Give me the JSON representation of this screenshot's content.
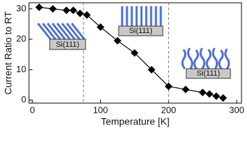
{
  "chart_data": {
    "type": "line",
    "x_label": "Temperature [K]",
    "y_label": "Current Ratio to RT",
    "x": [
      10,
      30,
      50,
      60,
      70,
      80,
      100,
      125,
      150,
      175,
      200,
      225,
      250,
      260,
      270,
      280
    ],
    "series": [
      {
        "color": "#000000",
        "values": [
          30.5,
          30,
          29.5,
          29.5,
          28.5,
          28,
          24,
          19.5,
          15.5,
          10,
          4.5,
          3.5,
          2.5,
          2,
          1.3,
          0.7
        ]
      }
    ],
    "xlim": [
      -5,
      307
    ],
    "ylim": [
      -1,
      32
    ],
    "xticks": [
      0,
      100,
      200,
      300
    ],
    "yticks": [
      0,
      10,
      20,
      30
    ],
    "vlines": [
      75,
      200
    ],
    "annotations": [
      "Si(111)",
      "Si(111)",
      "Si(111)"
    ]
  }
}
